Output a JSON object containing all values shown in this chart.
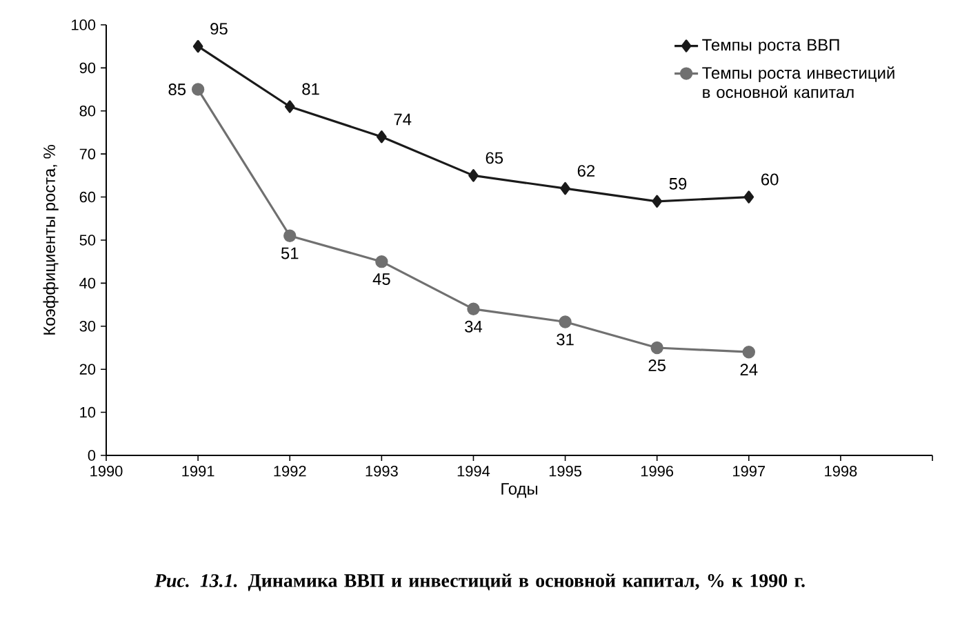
{
  "chart_data": {
    "type": "line",
    "title": "*Рис. 13.1.* Динамика ВВП и инвестиций в основной капитал, % к 1990 г.",
    "xlabel": "Годы",
    "ylabel": "Коэффициенты роста, %",
    "x": [
      1991,
      1992,
      1993,
      1994,
      1995,
      1996,
      1997
    ],
    "series": [
      {
        "name": "Темпы роста ВВП",
        "color": "#1a1a1a",
        "marker": "diamond",
        "values": [
          95,
          81,
          74,
          65,
          62,
          59,
          60
        ]
      },
      {
        "name": "Темпы роста инвестиций в основной капитал",
        "color": "#707070",
        "marker": "circle",
        "values": [
          85,
          51,
          45,
          34,
          31,
          25,
          24
        ]
      }
    ],
    "xlim": [
      1990,
      1999
    ],
    "xticks": [
      1990,
      1991,
      1992,
      1993,
      1994,
      1995,
      1996,
      1997,
      1998,
      {
        "value": 1999,
        "label": null
      }
    ],
    "ylim": [
      0,
      100
    ],
    "yticks": [
      0,
      10,
      20,
      30,
      40,
      50,
      60,
      70,
      80,
      90,
      100
    ],
    "grid": false,
    "legend": "top right",
    "data_labels": true,
    "line_style": "solid"
  }
}
